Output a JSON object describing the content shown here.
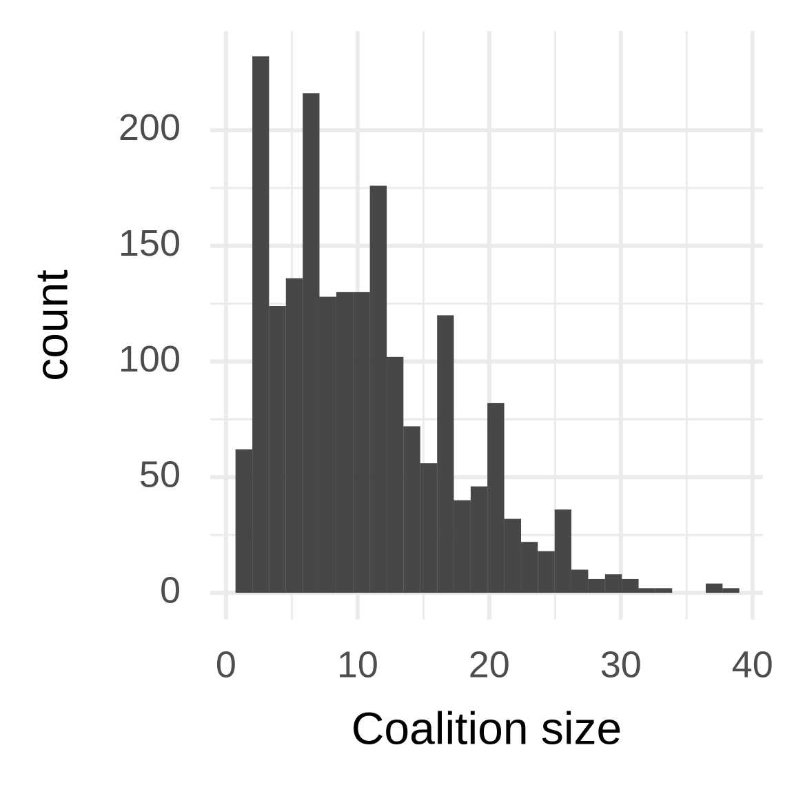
{
  "chart_data": {
    "type": "histogram",
    "x_label": "Coalition size",
    "y_label": "count",
    "bins": [
      0.72,
      2.0,
      3.27,
      4.55,
      5.83,
      7.1,
      8.38,
      9.66,
      10.93,
      12.21,
      13.48,
      14.76,
      16.04,
      17.31,
      18.59,
      19.86,
      21.14,
      22.42,
      23.69,
      24.97,
      26.24,
      27.52,
      28.8,
      30.07,
      31.35,
      32.62,
      33.9,
      35.18,
      36.45,
      37.73,
      39.0
    ],
    "values": [
      62,
      232,
      124,
      136,
      216,
      128,
      130,
      130,
      176,
      102,
      72,
      56,
      120,
      40,
      46,
      82,
      32,
      22,
      18,
      36,
      10,
      6,
      8,
      6,
      2,
      2,
      0,
      0,
      4,
      2
    ],
    "color": "#474747",
    "xlim": [
      -1.2,
      40.8
    ],
    "xticks": [
      0,
      10,
      20,
      30,
      40
    ],
    "ylim": [
      -11.6,
      242.9
    ],
    "yticks": [
      0,
      50,
      100,
      150,
      200
    ],
    "grid": true,
    "minor_grid": true
  }
}
